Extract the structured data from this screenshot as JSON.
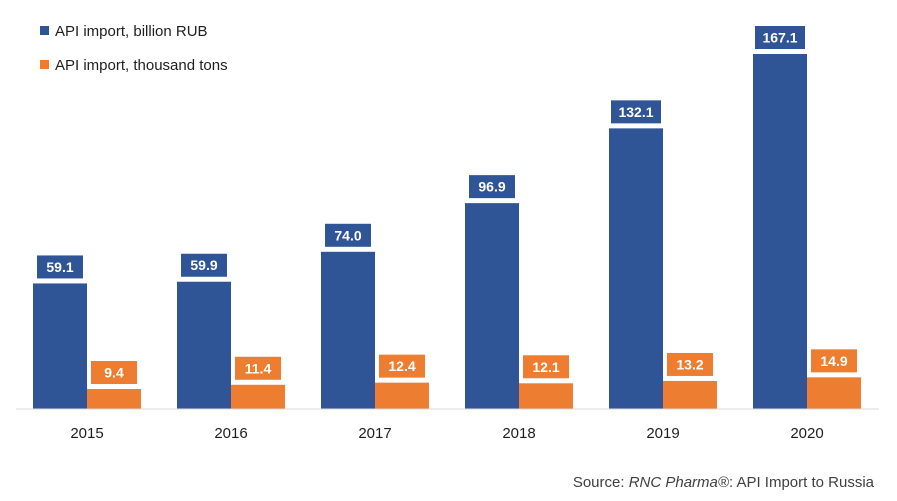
{
  "chart_data": {
    "type": "bar",
    "categories": [
      "2015",
      "2016",
      "2017",
      "2018",
      "2019",
      "2020"
    ],
    "series": [
      {
        "name": "API import, billion RUB",
        "color": "#2f5597",
        "values": [
          59.1,
          59.9,
          74.0,
          96.9,
          132.1,
          167.1
        ],
        "labels": [
          "59.1",
          "59.9",
          "74.0",
          "96.9",
          "132.1",
          "167.1"
        ]
      },
      {
        "name": "API import, thousand tons",
        "color": "#ed7d31",
        "values": [
          9.4,
          11.4,
          12.4,
          12.1,
          13.2,
          14.9
        ],
        "labels": [
          "9.4",
          "11.4",
          "12.4",
          "12.1",
          "13.2",
          "14.9"
        ]
      }
    ],
    "legend_position": "top-left",
    "grid": false,
    "ylim": [
      0,
      170
    ]
  },
  "source": {
    "prefix": "Source: ",
    "brand": "RNC Pharma®",
    "suffix": ": API Import to Russia"
  }
}
